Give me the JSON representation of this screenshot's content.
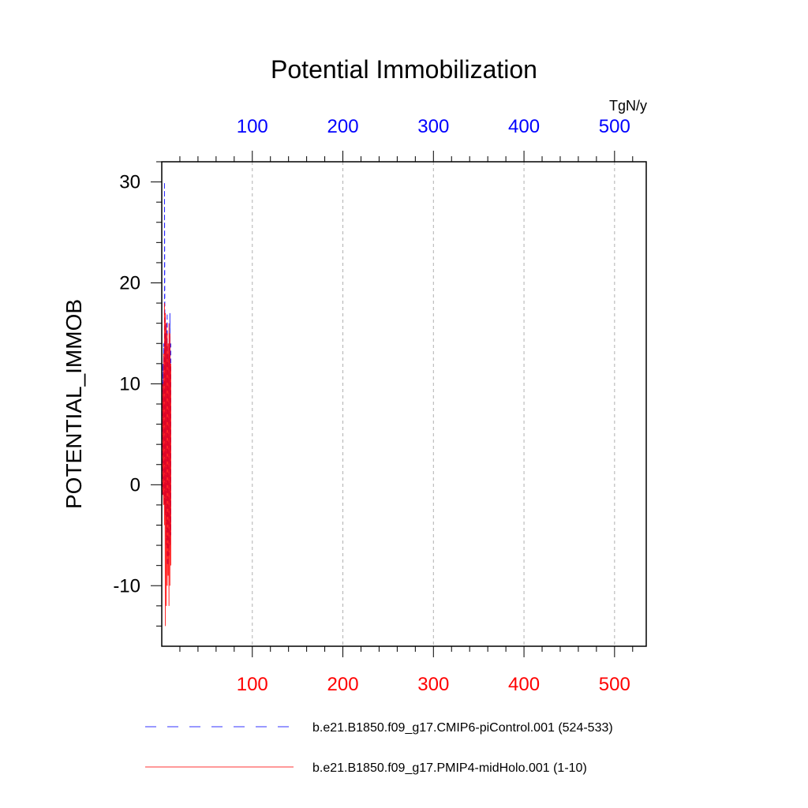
{
  "chart_data": {
    "type": "line",
    "title": "Potential Immobilization",
    "ylabel": "POTENTIAL_IMMOB",
    "xlabel": "",
    "units": "TgN/y",
    "xlim": [
      0,
      535
    ],
    "ylim": [
      -16,
      32
    ],
    "xticks": [
      "100",
      "200",
      "300",
      "400",
      "500"
    ],
    "yticks": [
      "30",
      "20",
      "10",
      "0",
      "-10"
    ],
    "grid": "vertical dashed",
    "legend_placement": "bottom",
    "series": [
      {
        "name": "b.e21.B1850.f09_g17.CMIP6-piControl.001 (524-533)",
        "color": "#0000ff",
        "style": "dashed",
        "axis": "top",
        "x": [
          1,
          1,
          2,
          2,
          3,
          3,
          4,
          4,
          5,
          5,
          6,
          6,
          7,
          7,
          8,
          8,
          9,
          9,
          10,
          10
        ],
        "y": [
          -1,
          12,
          -1,
          14,
          -2,
          30,
          -3,
          15,
          -6,
          16,
          -8,
          17,
          -8,
          13,
          -7,
          14,
          -6,
          17,
          -5,
          14
        ]
      },
      {
        "name": "b.e21.B1850.f09_g17.PMIP4-midHolo.001 (1-10)",
        "color": "#ff0000",
        "style": "solid",
        "axis": "bottom",
        "x": [
          1,
          1,
          2,
          2,
          3,
          3,
          4,
          4,
          5,
          5,
          6,
          6,
          7,
          7,
          8,
          8,
          9,
          9,
          10,
          10
        ],
        "y": [
          -1,
          10,
          -2,
          13,
          -4,
          18,
          -14,
          17,
          -12,
          16,
          -10,
          15,
          -9,
          14,
          -12,
          16,
          -10,
          15,
          -8,
          12
        ]
      }
    ]
  }
}
